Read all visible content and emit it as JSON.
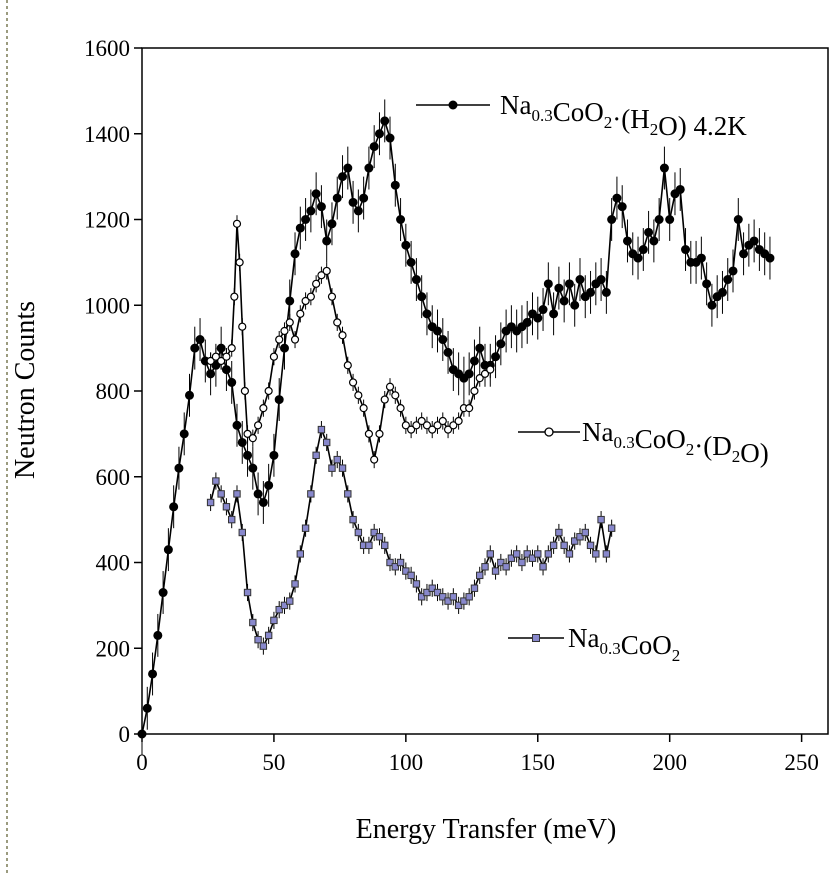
{
  "chart_data": {
    "type": "scatter",
    "xlabel": "Energy Transfer (meV)",
    "ylabel": "Neutron Counts",
    "xlim": [
      0,
      260
    ],
    "ylim": [
      0,
      1600
    ],
    "xticks": [
      0,
      50,
      100,
      150,
      200,
      250
    ],
    "yticks": [
      0,
      200,
      400,
      600,
      800,
      1000,
      1200,
      1400,
      1600
    ],
    "grid": false,
    "legend_placement": "inline labels next to each curve",
    "series": [
      {
        "name": "Na0.3CoO2·(H2O) 4.2K",
        "label_parts": [
          [
            "Na",
            ""
          ],
          [
            "0.3",
            "sub"
          ],
          [
            "CoO",
            ""
          ],
          [
            "2",
            "sub"
          ],
          [
            "·(H",
            ""
          ],
          [
            "2",
            "sub"
          ],
          [
            "O) 4.2K",
            ""
          ]
        ],
        "marker": "filled-circle",
        "color": "#000000",
        "x": [
          0,
          2,
          4,
          6,
          8,
          10,
          12,
          14,
          16,
          18,
          20,
          22,
          24,
          26,
          28,
          30,
          32,
          34,
          36,
          38,
          40,
          42,
          44,
          46,
          48,
          50,
          52,
          54,
          56,
          58,
          60,
          62,
          64,
          66,
          68,
          70,
          72,
          74,
          76,
          78,
          80,
          82,
          84,
          86,
          88,
          90,
          92,
          94,
          96,
          98,
          100,
          102,
          104,
          106,
          108,
          110,
          112,
          114,
          116,
          118,
          120,
          122,
          124,
          126,
          128,
          130,
          132,
          134,
          136,
          138,
          140,
          142,
          144,
          146,
          148,
          150,
          152,
          154,
          156,
          158,
          160,
          162,
          164,
          166,
          168,
          170,
          172,
          174,
          176,
          178,
          180,
          182,
          184,
          186,
          188,
          190,
          192,
          194,
          196,
          198,
          200,
          202,
          204,
          206,
          208,
          210,
          212,
          214,
          216,
          218,
          220,
          222,
          224,
          226,
          228,
          230,
          232,
          234,
          236,
          238
        ],
        "y": [
          0,
          60,
          140,
          230,
          330,
          430,
          530,
          620,
          700,
          790,
          900,
          920,
          870,
          840,
          860,
          900,
          850,
          820,
          720,
          680,
          650,
          620,
          560,
          540,
          580,
          650,
          780,
          900,
          1010,
          1120,
          1180,
          1200,
          1220,
          1260,
          1230,
          1150,
          1190,
          1250,
          1300,
          1320,
          1240,
          1220,
          1250,
          1320,
          1370,
          1400,
          1430,
          1390,
          1280,
          1200,
          1140,
          1100,
          1060,
          1020,
          980,
          950,
          940,
          920,
          890,
          850,
          840,
          830,
          840,
          870,
          900,
          860,
          860,
          880,
          910,
          940,
          950,
          940,
          950,
          960,
          980,
          970,
          990,
          1050,
          980,
          1040,
          1010,
          1050,
          1000,
          1060,
          1020,
          1030,
          1050,
          1060,
          1030,
          1200,
          1250,
          1230,
          1150,
          1120,
          1110,
          1130,
          1170,
          1150,
          1200,
          1320,
          1200,
          1260,
          1270,
          1130,
          1100,
          1100,
          1110,
          1050,
          1000,
          1020,
          1030,
          1060,
          1080,
          1200,
          1120,
          1140,
          1150,
          1130,
          1120,
          1110
        ],
        "y_error": 50
      },
      {
        "name": "Na0.3CoO2·(D2O)",
        "label_parts": [
          [
            "Na",
            ""
          ],
          [
            "0.3",
            "sub"
          ],
          [
            "CoO",
            ""
          ],
          [
            "2",
            "sub"
          ],
          [
            "·(D",
            ""
          ],
          [
            "2",
            "sub"
          ],
          [
            "O)",
            ""
          ]
        ],
        "marker": "open-circle",
        "color": "#000000",
        "x": [
          26,
          28,
          30,
          32,
          34,
          35,
          36,
          37,
          38,
          39,
          40,
          42,
          44,
          46,
          48,
          50,
          52,
          54,
          56,
          58,
          60,
          62,
          64,
          66,
          68,
          70,
          72,
          74,
          76,
          78,
          80,
          82,
          84,
          86,
          88,
          90,
          92,
          94,
          96,
          98,
          100,
          102,
          104,
          106,
          108,
          110,
          112,
          114,
          116,
          118,
          120,
          122,
          124,
          126,
          128,
          130,
          132
        ],
        "y": [
          870,
          880,
          870,
          880,
          900,
          1020,
          1190,
          1100,
          950,
          800,
          700,
          690,
          720,
          760,
          800,
          880,
          920,
          940,
          960,
          920,
          980,
          1010,
          1020,
          1050,
          1070,
          1080,
          1020,
          960,
          930,
          860,
          820,
          790,
          760,
          700,
          640,
          700,
          780,
          810,
          790,
          760,
          720,
          710,
          720,
          730,
          720,
          710,
          720,
          730,
          710,
          720,
          730,
          760,
          760,
          800,
          830,
          840,
          850
        ],
        "y_error": 20
      },
      {
        "name": "Na0.3CoO2",
        "label_parts": [
          [
            "Na",
            ""
          ],
          [
            "0.3",
            "sub"
          ],
          [
            "CoO",
            ""
          ],
          [
            "2",
            "sub"
          ]
        ],
        "marker": "open-square",
        "color": "#8888cc",
        "x": [
          26,
          28,
          30,
          32,
          34,
          36,
          38,
          40,
          42,
          44,
          46,
          48,
          50,
          52,
          54,
          56,
          58,
          60,
          62,
          64,
          66,
          68,
          70,
          72,
          74,
          76,
          78,
          80,
          82,
          84,
          86,
          88,
          90,
          92,
          94,
          96,
          98,
          100,
          102,
          104,
          106,
          108,
          110,
          112,
          114,
          116,
          118,
          120,
          122,
          124,
          126,
          128,
          130,
          132,
          134,
          136,
          138,
          140,
          142,
          144,
          146,
          148,
          150,
          152,
          154,
          156,
          158,
          160,
          162,
          164,
          166,
          168,
          170,
          172,
          174,
          176,
          178
        ],
        "y": [
          540,
          590,
          560,
          530,
          500,
          560,
          470,
          330,
          260,
          220,
          205,
          230,
          265,
          290,
          300,
          310,
          350,
          420,
          480,
          560,
          650,
          710,
          680,
          620,
          640,
          620,
          560,
          500,
          470,
          440,
          440,
          470,
          460,
          440,
          400,
          390,
          400,
          380,
          370,
          350,
          320,
          330,
          340,
          330,
          320,
          310,
          320,
          300,
          310,
          320,
          340,
          370,
          390,
          420,
          380,
          400,
          390,
          410,
          420,
          400,
          420,
          410,
          420,
          390,
          420,
          440,
          470,
          440,
          420,
          450,
          460,
          470,
          440,
          420,
          500,
          420,
          480
        ],
        "y_error": 20
      }
    ]
  }
}
